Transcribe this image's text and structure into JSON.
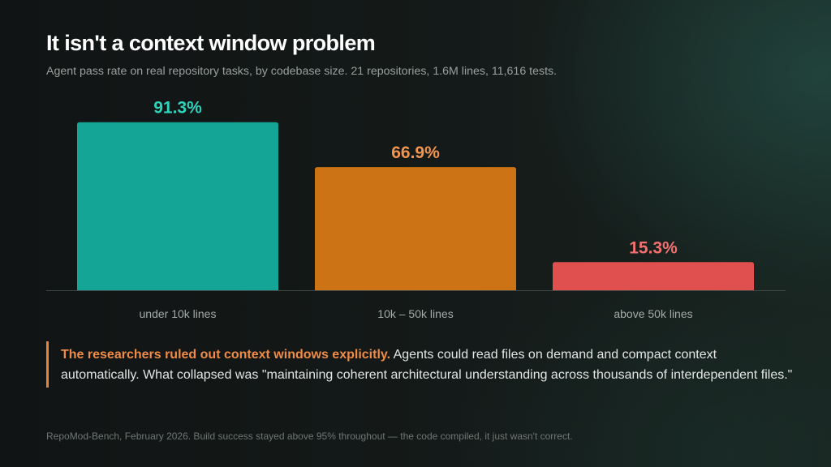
{
  "slide": {
    "title": "It isn't a context window problem",
    "subtitle": "Agent pass rate on real repository tasks, by codebase size. 21 repositories, 1.6M lines, 11,616 tests."
  },
  "chart_data": {
    "type": "bar",
    "categories": [
      "under 10k lines",
      "10k – 50k lines",
      "above 50k lines"
    ],
    "values": [
      91.3,
      66.9,
      15.3
    ],
    "value_labels": [
      "91.3%",
      "66.9%",
      "15.3%"
    ],
    "bar_colors": [
      "#15a596",
      "#cc7316",
      "#e0504f"
    ],
    "label_colors": [
      "#2fd3bd",
      "#f2954e",
      "#f27070"
    ],
    "title": "It isn't a context window problem",
    "xlabel": "",
    "ylabel": "",
    "ylim": [
      0,
      100
    ],
    "grid": false,
    "legend": "none"
  },
  "callout": {
    "highlight": "The researchers ruled out context windows explicitly.",
    "text": "Agents could read files on demand and compact context automatically. What collapsed was \"maintaining coherent architectural understanding across thousands of interdependent files.\"",
    "accent_color": "#e8823a"
  },
  "footnote": "RepoMod-Bench, February 2026. Build success stayed above 95% throughout — the code compiled, it just wasn't correct."
}
